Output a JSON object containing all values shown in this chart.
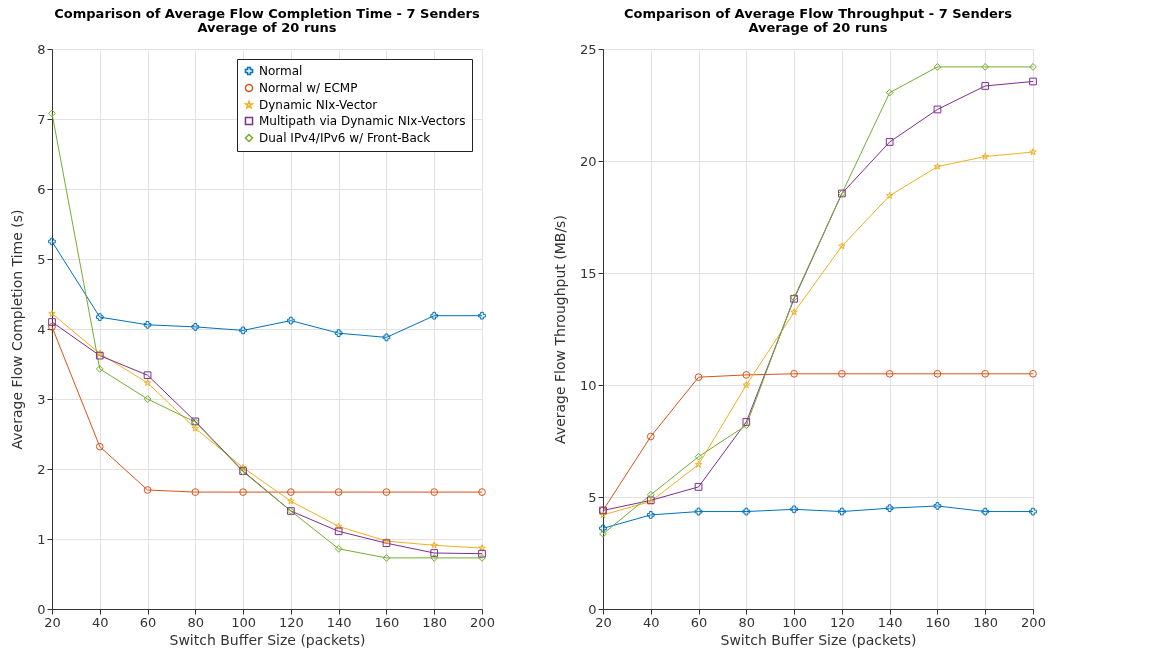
{
  "chart_data": [
    {
      "type": "line",
      "title": "Comparison of Average Flow Completion Time - 7 Senders",
      "subtitle": "Average of 20 runs",
      "xlabel": "Switch Buffer Size (packets)",
      "ylabel": "Average Flow Completion Time (s)",
      "x": [
        20,
        40,
        60,
        80,
        100,
        120,
        140,
        160,
        180,
        200
      ],
      "series": [
        {
          "name": "Normal",
          "color": "#0072bd",
          "marker": "cross",
          "values": [
            5.25,
            4.17,
            4.06,
            4.03,
            3.98,
            4.12,
            3.94,
            3.88,
            4.19,
            4.19
          ]
        },
        {
          "name": "Normal w/ ECMP",
          "color": "#d95319",
          "marker": "circle",
          "values": [
            4.03,
            2.32,
            1.7,
            1.67,
            1.67,
            1.67,
            1.67,
            1.67,
            1.67,
            1.67
          ]
        },
        {
          "name": "Dynamic NIx-Vector",
          "color": "#edb120",
          "marker": "star",
          "values": [
            4.22,
            3.65,
            3.23,
            2.58,
            2.02,
            1.54,
            1.18,
            0.97,
            0.91,
            0.87
          ]
        },
        {
          "name": "Multipath via Dynamic NIx-Vectors",
          "color": "#7e2f8e",
          "marker": "square",
          "values": [
            4.1,
            3.62,
            3.34,
            2.68,
            1.97,
            1.4,
            1.11,
            0.94,
            0.8,
            0.79
          ]
        },
        {
          "name": "Dual IPv4/IPv6 w/ Front-Back",
          "color": "#77ac30",
          "marker": "diamond",
          "values": [
            7.08,
            3.43,
            3.0,
            2.67,
            1.96,
            1.4,
            0.86,
            0.73,
            0.73,
            0.73
          ]
        }
      ],
      "xlim": [
        20,
        200
      ],
      "xticks": [
        20,
        40,
        60,
        80,
        100,
        120,
        140,
        160,
        180,
        200
      ],
      "ylim": [
        0,
        8
      ],
      "yticks": [
        0,
        1,
        2,
        3,
        4,
        5,
        6,
        7,
        8
      ],
      "grid": true,
      "legend": "top right"
    },
    {
      "type": "line",
      "title": "Comparison of Average Flow Throughput - 7 Senders",
      "subtitle": "Average of 20 runs",
      "xlabel": "Switch Buffer Size (packets)",
      "ylabel": "Average Flow Throughput (MB/s)",
      "x": [
        20,
        40,
        60,
        80,
        100,
        120,
        140,
        160,
        180,
        200
      ],
      "series": [
        {
          "color": "#0072bd",
          "marker": "cross",
          "values": [
            3.6,
            4.2,
            4.35,
            4.35,
            4.45,
            4.35,
            4.5,
            4.6,
            4.35,
            4.35
          ]
        },
        {
          "color": "#d95319",
          "marker": "circle",
          "values": [
            4.4,
            7.7,
            10.35,
            10.45,
            10.5,
            10.5,
            10.5,
            10.5,
            10.5,
            10.5
          ]
        },
        {
          "color": "#edb120",
          "marker": "star",
          "values": [
            4.2,
            4.8,
            6.45,
            10.0,
            13.25,
            16.2,
            18.45,
            19.75,
            20.2,
            20.4
          ]
        },
        {
          "color": "#7e2f8e",
          "marker": "square",
          "values": [
            4.4,
            4.85,
            5.45,
            8.35,
            13.85,
            18.55,
            20.85,
            22.3,
            23.35,
            23.55
          ]
        },
        {
          "color": "#77ac30",
          "marker": "diamond",
          "values": [
            3.35,
            5.1,
            6.8,
            8.2,
            13.9,
            18.55,
            23.05,
            24.2,
            24.2,
            24.2
          ]
        }
      ],
      "xlim": [
        20,
        200
      ],
      "xticks": [
        20,
        40,
        60,
        80,
        100,
        120,
        140,
        160,
        180,
        200
      ],
      "ylim": [
        0,
        25
      ],
      "yticks": [
        0,
        5,
        10,
        15,
        20,
        25
      ],
      "grid": true
    }
  ]
}
